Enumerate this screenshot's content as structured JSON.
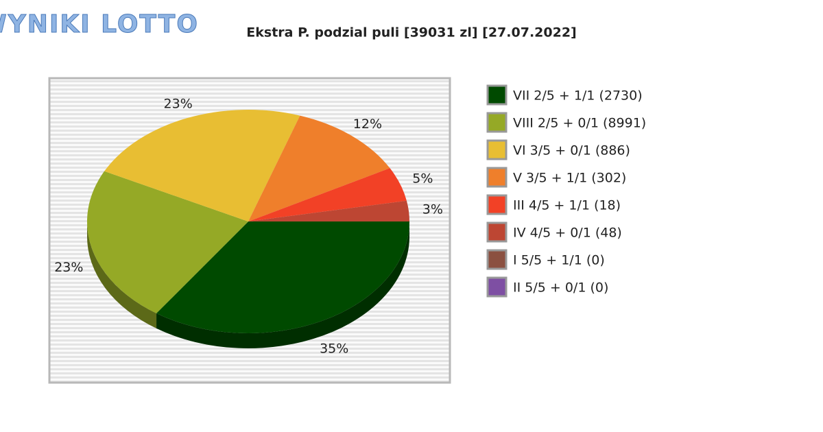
{
  "logo": "WYNIKI LOTTO",
  "chart_data": {
    "type": "pie",
    "title": "Ekstra P. podzial puli [39031 zl] [27.07.2022]",
    "series": [
      {
        "name": "VII 2/5 + 1/1 (2730)",
        "color": "#004a00",
        "values": [
          35
        ],
        "value_labels": [
          "35%"
        ]
      },
      {
        "name": "VIII 2/5 + 0/1 (8991)",
        "color": "#95a926",
        "values": [
          23
        ],
        "value_labels": [
          "23%"
        ]
      },
      {
        "name": "VI 3/5 + 0/1 (886)",
        "color": "#e8be33",
        "values": [
          23
        ],
        "value_labels": [
          "23%"
        ]
      },
      {
        "name": "V 3/5 + 1/1 (302)",
        "color": "#ef7f2b",
        "values": [
          12
        ],
        "value_labels": [
          "12%"
        ]
      },
      {
        "name": "III 4/5 + 1/1 (18)",
        "color": "#f24126",
        "values": [
          5
        ],
        "value_labels": [
          "5%"
        ]
      },
      {
        "name": "IV 4/5 + 0/1 (48)",
        "color": "#bd4633",
        "values": [
          3
        ],
        "value_labels": [
          "3%"
        ]
      },
      {
        "name": "I 5/5 + 1/1 (0)",
        "color": "#8b5040",
        "values": [
          0
        ],
        "value_labels": [
          null
        ]
      },
      {
        "name": "II 5/5 + 0/1 (0)",
        "color": "#7e4fa3",
        "values": [
          0
        ],
        "value_labels": [
          null
        ]
      }
    ],
    "legend": "right"
  }
}
